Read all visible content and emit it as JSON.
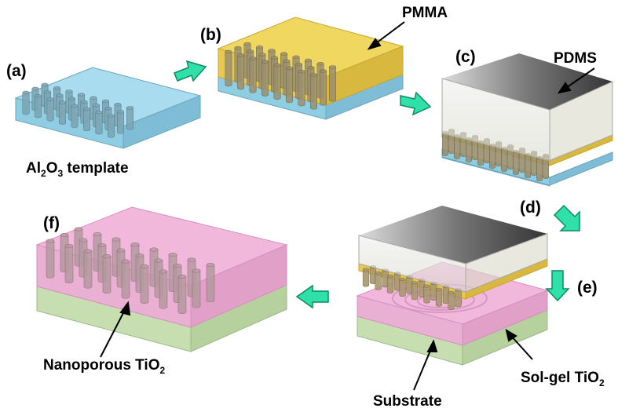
{
  "labels": {
    "step_a": "(a)",
    "step_b": "(b)",
    "step_c": "(c)",
    "step_d": "(d)",
    "step_e": "(e)",
    "step_f": "(f)",
    "template_main": "Al",
    "template_sub1": "2",
    "template_mid": "O",
    "template_sub2": "3",
    "template_tail": " template",
    "pmma": "PMMA",
    "pdms": "PDMS",
    "substrate": "Substrate",
    "solgel_main": "Sol-gel TiO",
    "solgel_sub": "2",
    "nano_main": "Nanoporous TiO",
    "nano_sub": "2"
  },
  "colors": {
    "alumina": "#a9dcee",
    "pmma": "#f0d860",
    "pdms_dark": "#3a3a3a",
    "tio2": "#f2b8dc",
    "substrate": "#c7dfb0",
    "arrow": "#2fe0a8",
    "pillar": "#8a8a8a"
  }
}
